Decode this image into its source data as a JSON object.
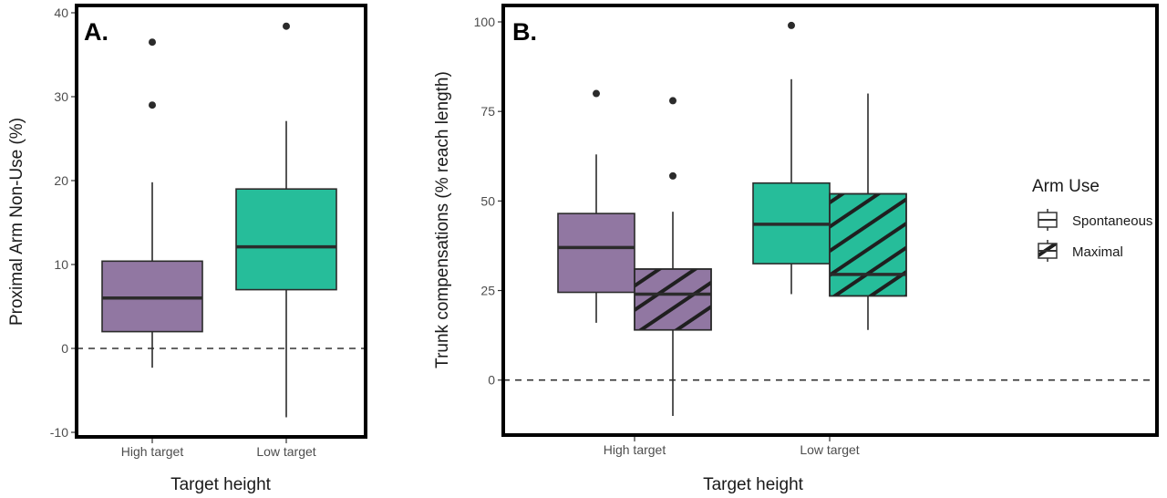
{
  "colors": {
    "high": "#9177a2",
    "low": "#26bd9a",
    "line": "#2b2b2b",
    "frame": "#000000"
  },
  "legend": {
    "title": "Arm Use",
    "items": [
      {
        "label": "Spontaneous",
        "pattern": "none"
      },
      {
        "label": "Maximal",
        "pattern": "stripe"
      }
    ]
  },
  "chart_data": [
    {
      "type": "boxplot",
      "panel_label": "A.",
      "xlabel": "Target height",
      "ylabel": "Proximal Arm Non-Use (%)",
      "ylim": [
        -10,
        40
      ],
      "yticks": [
        -10,
        0,
        10,
        20,
        30,
        40
      ],
      "reference_line": 0,
      "categories": [
        "High target",
        "Low target"
      ],
      "boxes": [
        {
          "category": "High target",
          "group": "Spontaneous",
          "color": "high",
          "pattern": "none",
          "whisker_low": -2.3,
          "q1": 2.0,
          "median": 6.0,
          "q3": 10.4,
          "whisker_high": 19.8,
          "outliers": [
            29,
            36.5
          ]
        },
        {
          "category": "Low target",
          "group": "Spontaneous",
          "color": "low",
          "pattern": "none",
          "whisker_low": -8.2,
          "q1": 7.0,
          "median": 12.1,
          "q3": 19.0,
          "whisker_high": 27.1,
          "outliers": [
            38.4
          ]
        }
      ]
    },
    {
      "type": "boxplot",
      "panel_label": "B.",
      "xlabel": "Target height",
      "ylabel": "Trunk compensations (% reach length)",
      "ylim": [
        -10,
        100
      ],
      "yticks": [
        0,
        25,
        50,
        75,
        100
      ],
      "reference_line": 0,
      "categories": [
        "High target",
        "Low target"
      ],
      "boxes": [
        {
          "category": "High target",
          "group": "Spontaneous",
          "color": "high",
          "pattern": "none",
          "whisker_low": 16.0,
          "q1": 24.5,
          "median": 37.0,
          "q3": 46.5,
          "whisker_high": 63.0,
          "outliers": [
            80
          ]
        },
        {
          "category": "High target",
          "group": "Maximal",
          "color": "high",
          "pattern": "stripe",
          "whisker_low": -10.0,
          "q1": 14.0,
          "median": 24.0,
          "q3": 31.0,
          "whisker_high": 47.0,
          "outliers": [
            57,
            78
          ]
        },
        {
          "category": "Low target",
          "group": "Spontaneous",
          "color": "low",
          "pattern": "none",
          "whisker_low": 24.0,
          "q1": 32.5,
          "median": 43.5,
          "q3": 55.0,
          "whisker_high": 84.0,
          "outliers": [
            99
          ]
        },
        {
          "category": "Low target",
          "group": "Maximal",
          "color": "low",
          "pattern": "stripe",
          "whisker_low": 14.0,
          "q1": 23.5,
          "median": 29.5,
          "q3": 52.0,
          "whisker_high": 80.0,
          "outliers": []
        }
      ]
    }
  ]
}
